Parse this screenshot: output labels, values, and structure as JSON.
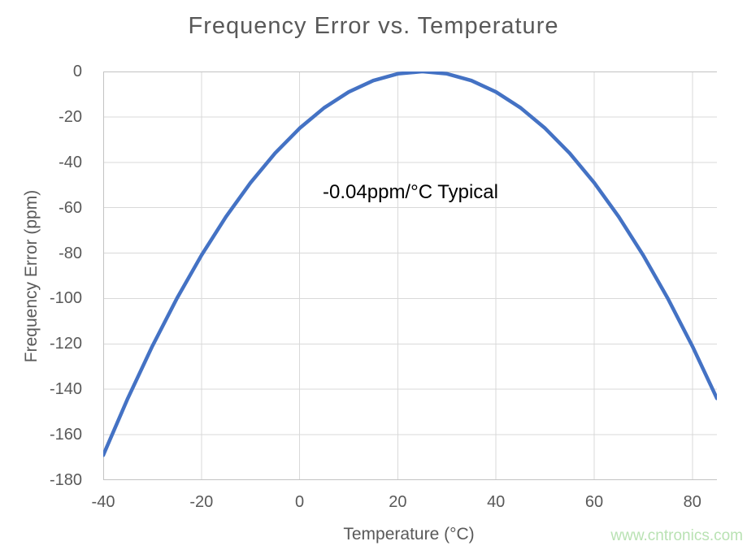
{
  "chart_data": {
    "type": "line",
    "title": "Frequency Error vs. Temperature",
    "xlabel": "Temperature (°C)",
    "ylabel": "Frequency Error (ppm)",
    "annotation": "-0.04ppm/°C Typical",
    "watermark": "www.cntronics.com",
    "xlim": [
      -40,
      85
    ],
    "ylim": [
      -180,
      0
    ],
    "x_ticks": [
      -40,
      -20,
      0,
      20,
      40,
      60,
      80
    ],
    "y_ticks": [
      0,
      -20,
      -40,
      -60,
      -80,
      -100,
      -120,
      -140,
      -160,
      -180
    ],
    "grid": true,
    "legend_position": "none",
    "series": [
      {
        "name": "Frequency Error",
        "color": "#4472C4",
        "x": [
          -40,
          -35,
          -30,
          -25,
          -20,
          -15,
          -10,
          -5,
          0,
          5,
          10,
          15,
          20,
          25,
          30,
          35,
          40,
          45,
          50,
          55,
          60,
          65,
          70,
          75,
          80,
          85
        ],
        "y": [
          -169,
          -144,
          -121,
          -100,
          -81,
          -64,
          -49,
          -36,
          -25,
          -16,
          -9,
          -4,
          -1,
          0,
          -1,
          -4,
          -9,
          -16,
          -25,
          -36,
          -49,
          -64,
          -81,
          -100,
          -121,
          -144
        ]
      }
    ],
    "colors": {
      "curve": "#4472C4",
      "gridline": "#d9d9d9",
      "axis_line": "#c3c3c3",
      "axis_text": "#595959",
      "title_text": "#595959",
      "annotation_text": "#000000",
      "watermark_text": "#b9e2b3"
    }
  }
}
